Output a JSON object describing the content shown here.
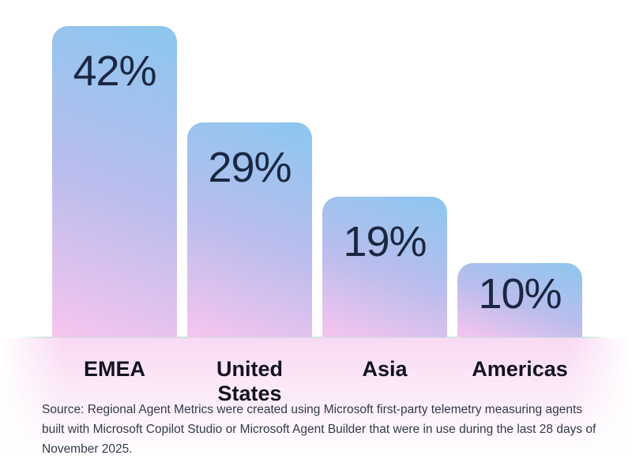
{
  "chart_data": {
    "type": "bar",
    "title": "",
    "categories": [
      "EMEA",
      "United States",
      "Asia",
      "Americas"
    ],
    "values": [
      42,
      29,
      19,
      10
    ],
    "value_labels": [
      "42%",
      "29%",
      "19%",
      "10%"
    ],
    "unit": "%",
    "ylim": [
      0,
      42
    ],
    "grid": false,
    "legend": "none",
    "orientation": "vertical",
    "colors": {
      "bar_gradient_top": "#8bc7ee",
      "bar_gradient_mid": "#b9bded",
      "bar_gradient_bottom": "#f7c5ee",
      "value_label_color": "#1b2742",
      "category_label_color": "#131321",
      "baseline_color": "#cbe6de",
      "glow_color": "#f9d9f4",
      "background": "#ffffff"
    }
  },
  "source_note": "Source: Regional Agent Metrics were created using Microsoft first-party telemetry measuring agents built with Microsoft Copilot Studio or Microsoft Agent Builder that were in use during the last 28 days of November 2025."
}
